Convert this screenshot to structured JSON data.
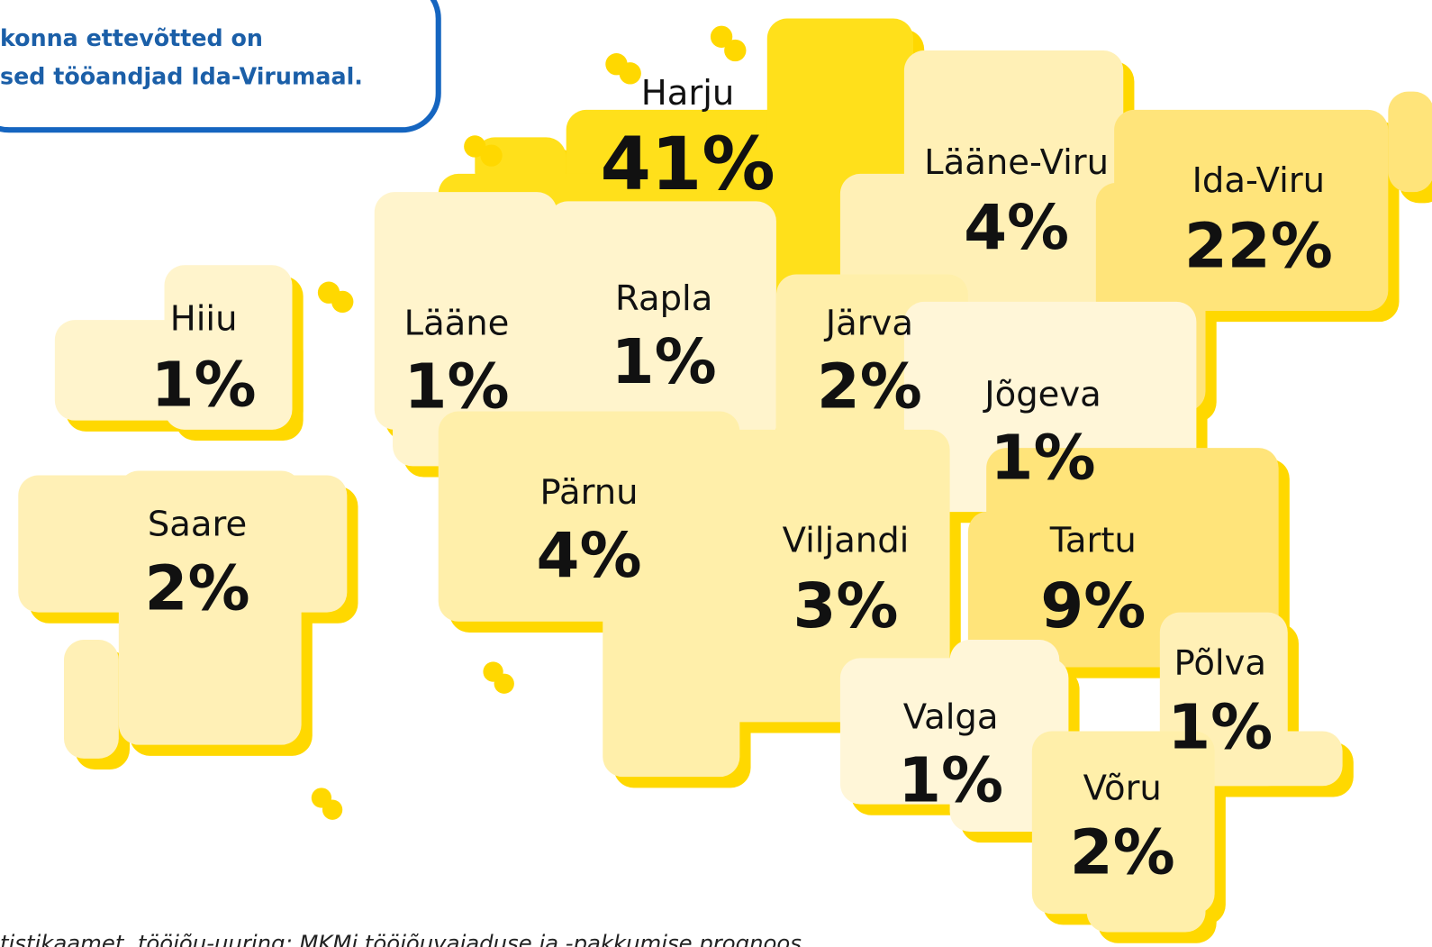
{
  "callout": {
    "lines": [
      "konna ettevõtted on",
      "sed tööandjad Ida-Virumaal."
    ]
  },
  "regions": [
    {
      "name": "Harju",
      "share": "41%"
    },
    {
      "name": "Lääne-Viru",
      "share": "4%"
    },
    {
      "name": "Ida-Viru",
      "share": "22%"
    },
    {
      "name": "Hiiu",
      "share": "1%"
    },
    {
      "name": "Lääne",
      "share": "1%"
    },
    {
      "name": "Rapla",
      "share": "1%"
    },
    {
      "name": "Järva",
      "share": "2%"
    },
    {
      "name": "Jõgeva",
      "share": "1%"
    },
    {
      "name": "Saare",
      "share": "2%"
    },
    {
      "name": "Pärnu",
      "share": "4%"
    },
    {
      "name": "Viljandi",
      "share": "3%"
    },
    {
      "name": "Tartu",
      "share": "9%"
    },
    {
      "name": "Põlva",
      "share": "1%"
    },
    {
      "name": "Valga",
      "share": "1%"
    },
    {
      "name": "Võru",
      "share": "2%"
    }
  ],
  "source": "tistikaamet, tööjõu-uuring; MKMi tööjõuvajaduse ja -pakkumise prognoos"
}
